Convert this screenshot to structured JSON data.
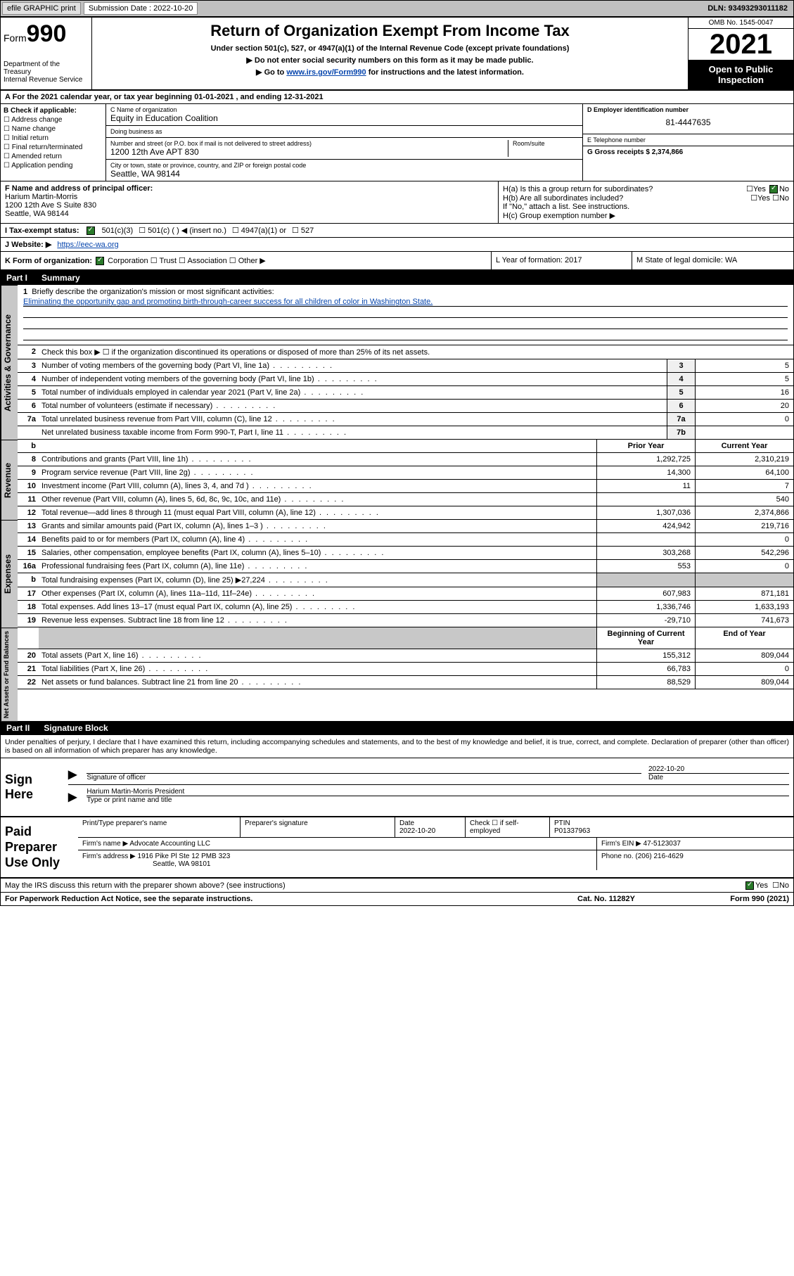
{
  "topbar": {
    "efile": "efile GRAPHIC print",
    "sub_label": "Submission Date : 2022-10-20",
    "dln": "DLN: 93493293011182"
  },
  "header": {
    "form_word": "Form",
    "form_num": "990",
    "dept": "Department of the Treasury",
    "irs": "Internal Revenue Service",
    "title": "Return of Organization Exempt From Income Tax",
    "sub": "Under section 501(c), 527, or 4947(a)(1) of the Internal Revenue Code (except private foundations)",
    "arrow1": "▶ Do not enter social security numbers on this form as it may be made public.",
    "arrow2_pre": "▶ Go to ",
    "arrow2_link": "www.irs.gov/Form990",
    "arrow2_post": " for instructions and the latest information.",
    "omb": "OMB No. 1545-0047",
    "year": "2021",
    "open": "Open to Public Inspection"
  },
  "row_a": "A For the 2021 calendar year, or tax year beginning 01-01-2021    , and ending 12-31-2021",
  "col_b": {
    "title": "B Check if applicable:",
    "items": [
      "Address change",
      "Name change",
      "Initial return",
      "Final return/terminated",
      "Amended return",
      "Application pending"
    ]
  },
  "col_c": {
    "c_lab": "C Name of organization",
    "c_val": "Equity in Education Coalition",
    "dba_lab": "Doing business as",
    "dba_val": "",
    "addr_lab": "Number and street (or P.O. box if mail is not delivered to street address)",
    "addr_val": "1200 12th Ave APT 830",
    "suite_lab": "Room/suite",
    "city_lab": "City or town, state or province, country, and ZIP or foreign postal code",
    "city_val": "Seattle, WA  98144"
  },
  "col_de": {
    "d_lab": "D Employer identification number",
    "d_val": "81-4447635",
    "e_lab": "E Telephone number",
    "e_val": "",
    "g_lab": "G Gross receipts $ 2,374,866"
  },
  "fh": {
    "f_lab": "F Name and address of principal officer:",
    "f_name": "Harium Martin-Morris",
    "f_addr1": "1200 12th Ave S Suite 830",
    "f_addr2": "Seattle, WA  98144",
    "ha": "H(a)  Is this a group return for subordinates?",
    "hb": "H(b)  Are all subordinates included?",
    "hb_note": "If \"No,\" attach a list. See instructions.",
    "hc": "H(c)  Group exemption number ▶",
    "yes": "Yes",
    "no": "No"
  },
  "row_i": {
    "label": "I  Tax-exempt status:",
    "o1": "501(c)(3)",
    "o2": "501(c) (    ) ◀ (insert no.)",
    "o3": "4947(a)(1) or",
    "o4": "527"
  },
  "row_j": {
    "label": "J  Website: ▶",
    "val": "https://eec-wa.org"
  },
  "row_klm": {
    "k": "K Form of organization:",
    "k_opts": [
      "Corporation",
      "Trust",
      "Association",
      "Other ▶"
    ],
    "l": "L Year of formation: 2017",
    "m": "M State of legal domicile: WA"
  },
  "part1": {
    "label": "Part I",
    "title": "Summary"
  },
  "mission": {
    "num": "1",
    "lab": "Briefly describe the organization's mission or most significant activities:",
    "text": "Eliminating the opportunity gap and promoting birth-through-career success for all children of color in Washington State."
  },
  "line2": "Check this box ▶ ☐  if the organization discontinued its operations or disposed of more than 25% of its net assets.",
  "gov_lines": [
    {
      "n": "3",
      "d": "Number of voting members of the governing body (Part VI, line 1a)",
      "box": "3",
      "v": "5"
    },
    {
      "n": "4",
      "d": "Number of independent voting members of the governing body (Part VI, line 1b)",
      "box": "4",
      "v": "5"
    },
    {
      "n": "5",
      "d": "Total number of individuals employed in calendar year 2021 (Part V, line 2a)",
      "box": "5",
      "v": "16"
    },
    {
      "n": "6",
      "d": "Total number of volunteers (estimate if necessary)",
      "box": "6",
      "v": "20"
    },
    {
      "n": "7a",
      "d": "Total unrelated business revenue from Part VIII, column (C), line 12",
      "box": "7a",
      "v": "0"
    },
    {
      "n": "",
      "d": "Net unrelated business taxable income from Form 990-T, Part I, line 11",
      "box": "7b",
      "v": ""
    }
  ],
  "col_hdr": {
    "b": "b",
    "prior": "Prior Year",
    "current": "Current Year"
  },
  "rev_lines": [
    {
      "n": "8",
      "d": "Contributions and grants (Part VIII, line 1h)",
      "p": "1,292,725",
      "c": "2,310,219"
    },
    {
      "n": "9",
      "d": "Program service revenue (Part VIII, line 2g)",
      "p": "14,300",
      "c": "64,100"
    },
    {
      "n": "10",
      "d": "Investment income (Part VIII, column (A), lines 3, 4, and 7d )",
      "p": "11",
      "c": "7"
    },
    {
      "n": "11",
      "d": "Other revenue (Part VIII, column (A), lines 5, 6d, 8c, 9c, 10c, and 11e)",
      "p": "",
      "c": "540"
    },
    {
      "n": "12",
      "d": "Total revenue—add lines 8 through 11 (must equal Part VIII, column (A), line 12)",
      "p": "1,307,036",
      "c": "2,374,866"
    }
  ],
  "exp_lines": [
    {
      "n": "13",
      "d": "Grants and similar amounts paid (Part IX, column (A), lines 1–3 )",
      "p": "424,942",
      "c": "219,716"
    },
    {
      "n": "14",
      "d": "Benefits paid to or for members (Part IX, column (A), line 4)",
      "p": "",
      "c": "0"
    },
    {
      "n": "15",
      "d": "Salaries, other compensation, employee benefits (Part IX, column (A), lines 5–10)",
      "p": "303,268",
      "c": "542,296"
    },
    {
      "n": "16a",
      "d": "Professional fundraising fees (Part IX, column (A), line 11e)",
      "p": "553",
      "c": "0"
    },
    {
      "n": "b",
      "d": "Total fundraising expenses (Part IX, column (D), line 25) ▶27,224",
      "p": "__GREY__",
      "c": "__GREY__"
    },
    {
      "n": "17",
      "d": "Other expenses (Part IX, column (A), lines 11a–11d, 11f–24e)",
      "p": "607,983",
      "c": "871,181"
    },
    {
      "n": "18",
      "d": "Total expenses. Add lines 13–17 (must equal Part IX, column (A), line 25)",
      "p": "1,336,746",
      "c": "1,633,193"
    },
    {
      "n": "19",
      "d": "Revenue less expenses. Subtract line 18 from line 12",
      "p": "-29,710",
      "c": "741,673"
    }
  ],
  "na_hdr": {
    "b": "Beginning of Current Year",
    "e": "End of Year"
  },
  "na_lines": [
    {
      "n": "20",
      "d": "Total assets (Part X, line 16)",
      "p": "155,312",
      "c": "809,044"
    },
    {
      "n": "21",
      "d": "Total liabilities (Part X, line 26)",
      "p": "66,783",
      "c": "0"
    },
    {
      "n": "22",
      "d": "Net assets or fund balances. Subtract line 21 from line 20",
      "p": "88,529",
      "c": "809,044"
    }
  ],
  "part2": {
    "label": "Part II",
    "title": "Signature Block"
  },
  "penalty": "Under penalties of perjury, I declare that I have examined this return, including accompanying schedules and statements, and to the best of my knowledge and belief, it is true, correct, and complete. Declaration of preparer (other than officer) is based on all information of which preparer has any knowledge.",
  "sign": {
    "here": "Sign Here",
    "sig_lab": "Signature of officer",
    "date_val": "2022-10-20",
    "date_lab": "Date",
    "name": "Harium Martin-Morris  President",
    "name_lab": "Type or print name and title"
  },
  "prep": {
    "here": "Paid Preparer Use Only",
    "r1": {
      "c1": "Print/Type preparer's name",
      "c2": "Preparer's signature",
      "c3_lab": "Date",
      "c3": "2022-10-20",
      "c4": "Check ☐ if self-employed",
      "c5_lab": "PTIN",
      "c5": "P01337963"
    },
    "r2": {
      "c1": "Firm's name    ▶ Advocate Accounting LLC",
      "c2": "Firm's EIN ▶ 47-5123037"
    },
    "r3": {
      "c1": "Firm's address ▶ 1916 Pike Pl Ste 12 PMB 323",
      "c2": "Phone no. (206) 216-4629"
    },
    "r3b": "Seattle, WA  98101"
  },
  "discuss": {
    "q": "May the IRS discuss this return with the preparer shown above? (see instructions)",
    "yes": "Yes",
    "no": "No"
  },
  "footer": {
    "pra": "For Paperwork Reduction Act Notice, see the separate instructions.",
    "cat": "Cat. No. 11282Y",
    "form": "Form 990 (2021)"
  },
  "vlabels": {
    "gov": "Activities & Governance",
    "rev": "Revenue",
    "exp": "Expenses",
    "na": "Net Assets or Fund Balances"
  }
}
